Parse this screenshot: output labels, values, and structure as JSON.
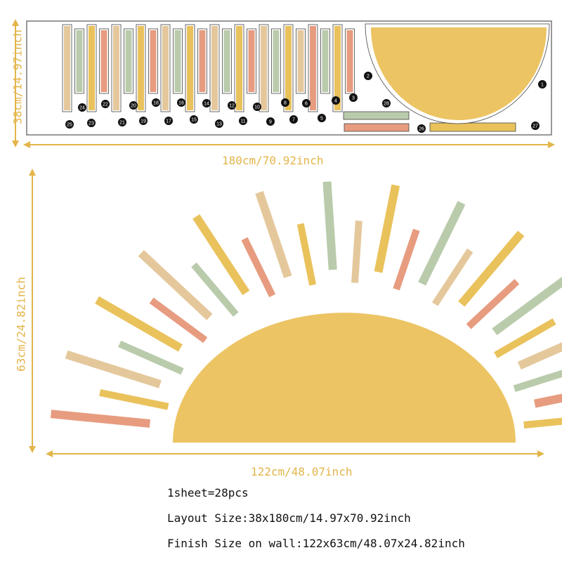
{
  "sheet": {
    "height_label": "38cm/14.97inch",
    "width_label": "180cm/70.92inch",
    "piece_numbers": [
      "1",
      "2",
      "3",
      "4",
      "5",
      "6",
      "7",
      "8",
      "9",
      "10",
      "11",
      "12",
      "13",
      "14",
      "15",
      "16",
      "17",
      "18",
      "19",
      "20",
      "21",
      "22",
      "23",
      "24",
      "25",
      "26",
      "27",
      "28"
    ]
  },
  "wall": {
    "height_label": "63cm/24.82inch",
    "width_label": "122cm/48.07inch"
  },
  "info": {
    "pieces": "1sheet=28pcs",
    "layout_size": "Layout Size:38x180cm/14.97x70.92inch",
    "finish_size": "Finish Size on wall:122x63cm/48.07x24.82inch"
  },
  "colors": {
    "sun": "#ecc463",
    "accent": "#e3b54a",
    "ray_palette": [
      "#e9c25c",
      "#e4c89c",
      "#b9cbab",
      "#e79c80"
    ]
  }
}
